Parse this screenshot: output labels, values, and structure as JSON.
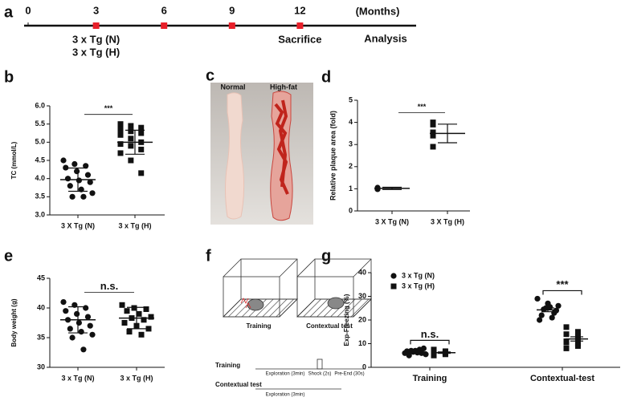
{
  "timeline": {
    "letter": "a",
    "ticks": [
      0,
      3,
      6,
      9,
      12
    ],
    "unit": "(Months)",
    "markers": [
      3,
      6,
      9,
      12
    ],
    "labels": [
      {
        "at": 3,
        "lines": [
          "3 x Tg (N)",
          "3 x Tg (H)"
        ]
      },
      {
        "at": 12,
        "lines": [
          "Sacrifice"
        ]
      }
    ],
    "end": "Analysis"
  },
  "photo": {
    "letter": "c",
    "labels": [
      "Normal",
      "High-fat"
    ]
  },
  "diagram": {
    "letter": "f",
    "boxes": [
      "Training",
      "Contextual test"
    ],
    "protocol": [
      {
        "label": "Training",
        "segments": [
          "Exploration (3min)",
          "Shock (2s)",
          "Pre-End (30s)"
        ]
      },
      {
        "label": "Contextual test",
        "segments": [
          "Exploration (3min)"
        ]
      }
    ]
  },
  "chart_data": [
    {
      "type": "dot",
      "letter": "b",
      "ylabel": "TC (mmol/L)",
      "ylim": [
        3,
        6
      ],
      "yticks": [
        {
          "value": 3,
          "label": "3.0"
        },
        {
          "value": 3.5,
          "label": "3.5"
        },
        {
          "value": 4,
          "label": "4.0"
        },
        {
          "value": 4.5,
          "label": "4.5"
        },
        {
          "value": 5,
          "label": "5.0"
        },
        {
          "value": 5.5,
          "label": "5.5"
        },
        {
          "value": 6,
          "label": "6.0"
        }
      ],
      "categories": [
        "3 X Tg (N)",
        "3 x Tg (H)"
      ],
      "markers": [
        "circle",
        "square"
      ],
      "groups": [
        {
          "values": [
            4.5,
            4.4,
            4.35,
            4.3,
            4.2,
            4.1,
            4.0,
            3.95,
            3.9,
            3.8,
            3.7,
            3.6,
            3.5,
            3.5
          ],
          "mean": 3.97,
          "sd": 0.32
        },
        {
          "values": [
            5.5,
            5.45,
            5.4,
            5.35,
            5.3,
            5.25,
            5.2,
            5.1,
            5.0,
            4.95,
            4.9,
            4.8,
            4.7,
            4.5,
            4.15
          ],
          "mean": 5.0,
          "sd": 0.33
        }
      ],
      "annotations": [
        {
          "text": "***",
          "between": [
            0,
            1
          ]
        }
      ]
    },
    {
      "type": "dot",
      "letter": "d",
      "ylabel": "Relative plaque area (fold)",
      "ylim": [
        0,
        5
      ],
      "yticks": [
        0,
        1,
        2,
        3,
        4,
        5
      ],
      "categories": [
        "3 X Tg (N)",
        "3 X Tg (H)"
      ],
      "markers": [
        "circle",
        "square"
      ],
      "groups": [
        {
          "values": [
            1.05,
            1.0,
            1.02,
            0.98,
            1.0
          ],
          "mean": 1.02,
          "sd": 0.05
        },
        {
          "values": [
            4.0,
            3.9,
            3.55,
            3.4,
            2.9
          ],
          "mean": 3.5,
          "sd": 0.42
        }
      ],
      "annotations": [
        {
          "text": "***",
          "between": [
            0,
            1
          ]
        }
      ]
    },
    {
      "type": "dot",
      "letter": "e",
      "ylabel": "Body weight (g)",
      "ylim": [
        30,
        45
      ],
      "yticks": [
        30,
        35,
        40,
        45
      ],
      "categories": [
        "3 x Tg (N)",
        "3 x Tg (H)"
      ],
      "markers": [
        "circle",
        "square"
      ],
      "groups": [
        {
          "values": [
            41,
            40.5,
            40,
            39.5,
            39,
            38.5,
            38,
            37.5,
            37,
            36.5,
            36,
            35.5,
            35,
            33
          ],
          "mean": 38,
          "sd": 2.2
        },
        {
          "values": [
            40.5,
            40,
            39.8,
            39.5,
            39,
            38.5,
            38.3,
            38,
            37.5,
            37,
            36.5,
            36,
            35.5
          ],
          "mean": 38.3,
          "sd": 1.8
        }
      ],
      "annotations": [
        {
          "text": "n.s.",
          "between": [
            0,
            1
          ]
        }
      ]
    },
    {
      "type": "groupeddot",
      "letter": "g",
      "ylabel": "Exp-Freezing (%)",
      "ylim": [
        0,
        40
      ],
      "yticks": [
        0,
        10,
        20,
        30,
        40
      ],
      "legend": "upper left",
      "categories": [
        "Training",
        "Contextual-test"
      ],
      "series": [
        {
          "name": "3 x Tg (N)",
          "marker": "circle",
          "values": [
            [
              6,
              7,
              5.5,
              6.5,
              8,
              7,
              6,
              5,
              7.5,
              6.8,
              6.2
            ],
            [
              29,
              27,
              26,
              25,
              24,
              24.5,
              23,
              22,
              21,
              20,
              25.5
            ]
          ],
          "mean": [
            6.5,
            24.3
          ],
          "sem": [
            0.3,
            0.8
          ]
        },
        {
          "name": "3 x Tg (H)",
          "marker": "square",
          "values": [
            [
              6,
              5.5,
              7,
              6.5,
              5,
              6,
              7.5,
              5.8,
              6.2,
              6.8
            ],
            [
              17,
              15,
              14,
              12,
              11,
              10,
              10.5,
              9,
              8,
              13
            ]
          ],
          "mean": [
            6.2,
            12
          ],
          "sem": [
            0.3,
            0.9
          ]
        }
      ],
      "annotations": [
        {
          "text": "n.s.",
          "category": 0
        },
        {
          "text": "***",
          "category": 1
        }
      ]
    }
  ]
}
